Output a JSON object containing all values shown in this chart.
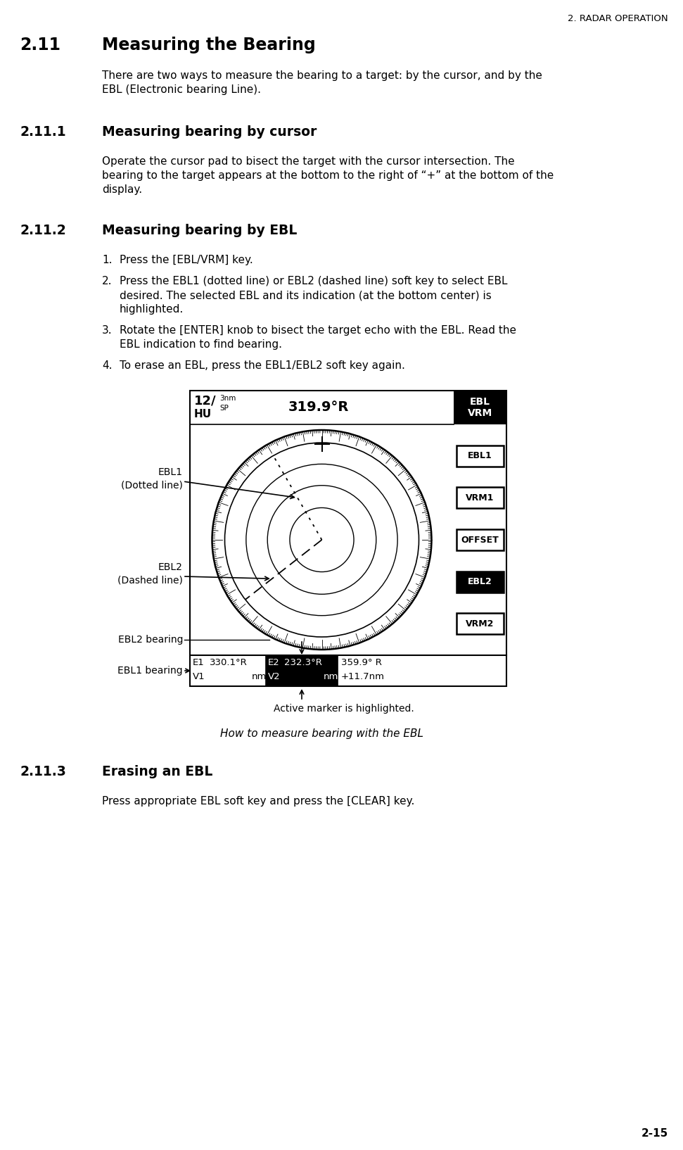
{
  "page_header": "2. RADAR OPERATION",
  "page_footer": "2-15",
  "section_211": "2.11",
  "section_211_title": "Measuring the Bearing",
  "section_211_body1": "There are two ways to measure the bearing to a target: by the cursor, and by the",
  "section_211_body2": "EBL (Electronic bearing Line).",
  "section_2111": "2.11.1",
  "section_2111_title": "Measuring bearing by cursor",
  "section_2111_body1": "Operate the cursor pad to bisect the target with the cursor intersection. The",
  "section_2111_body2": "bearing to the target appears at the bottom to the right of “+” at the bottom of the",
  "section_2111_body3": "display.",
  "section_2112": "2.11.2",
  "section_2112_title": "Measuring bearing by EBL",
  "item1": "Press the [EBL/VRM] key.",
  "item2a": "Press the EBL1 (dotted line) or EBL2 (dashed line) soft key to select EBL",
  "item2b": "desired. The selected EBL and its indication (at the bottom center) is",
  "item2c": "highlighted.",
  "item3a": "Rotate the [ENTER] knob to bisect the target echo with the EBL. Read the",
  "item3b": "EBL indication to find bearing.",
  "item4": "To erase an EBL, press the EBL1/EBL2 soft key again.",
  "caption": "How to measure bearing with the EBL",
  "section_2113": "2.11.3",
  "section_2113_title": "Erasing an EBL",
  "section_2113_body": "Press appropriate EBL soft key and press the [CLEAR] key.",
  "radar_sidebar": [
    "EBL1",
    "VRM1",
    "OFFSET",
    "EBL2",
    "VRM2"
  ],
  "label_ebl1": "EBL1",
  "label_ebl1b": "(Dotted line)",
  "label_ebl2": "EBL2",
  "label_ebl2b": "(Dashed line)",
  "label_ebl2_bearing": "EBL2 bearing",
  "label_ebl1_bearing": "EBL1 bearing",
  "label_active": "Active marker is highlighted.",
  "bg_color": "#ffffff",
  "text_color": "#000000"
}
